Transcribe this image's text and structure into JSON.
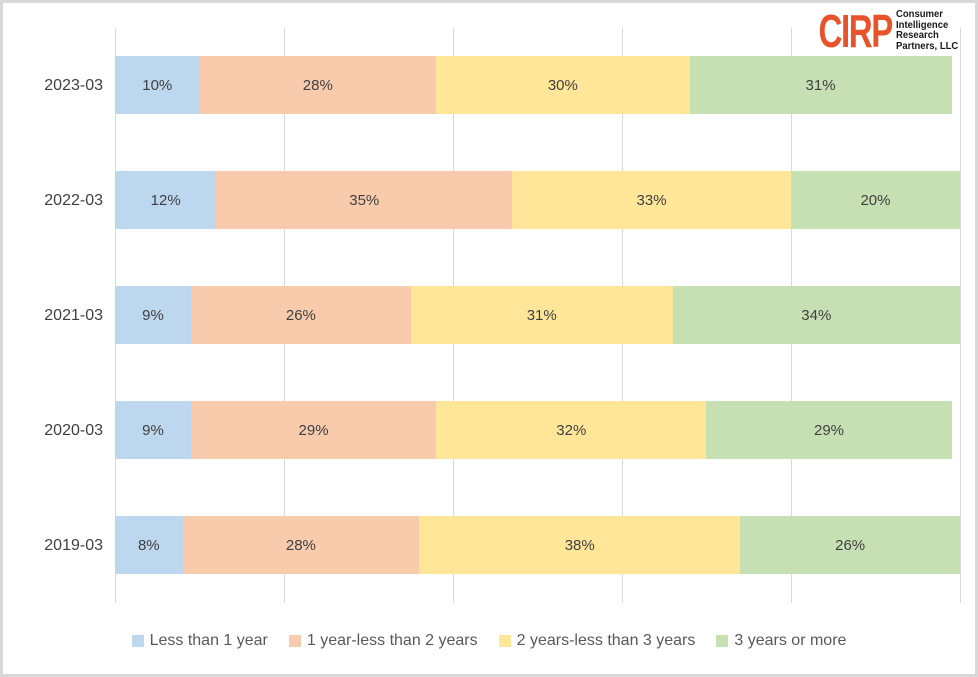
{
  "logo": {
    "mark": "CIRP",
    "mark_color": "#e8532c",
    "lines": [
      "Consumer",
      "Intelligence",
      "Research",
      "Partners, LLC"
    ]
  },
  "chart_data": {
    "type": "bar",
    "orientation": "horizontal",
    "stacked": true,
    "categories": [
      "2023-03",
      "2022-03",
      "2021-03",
      "2020-03",
      "2019-03"
    ],
    "series": [
      {
        "name": "Less than 1 year",
        "color": "#bdd7ee",
        "values": [
          10,
          12,
          9,
          9,
          8
        ]
      },
      {
        "name": "1 year-less than 2 years",
        "color": "#f8cbad",
        "values": [
          28,
          35,
          26,
          29,
          28
        ]
      },
      {
        "name": "2 years-less than 3 years",
        "color": "#ffe699",
        "values": [
          30,
          33,
          31,
          32,
          38
        ]
      },
      {
        "name": "3 years or more",
        "color": "#c6e0b4",
        "values": [
          31,
          20,
          34,
          29,
          26
        ]
      }
    ],
    "value_suffix": "%",
    "xlim": [
      0,
      100
    ],
    "gridline_step": 20,
    "gridlines": "vertical",
    "gridline_color": "#d9d9d9",
    "data_labels": true,
    "data_label_color": "#404040",
    "legend_position": "bottom"
  }
}
